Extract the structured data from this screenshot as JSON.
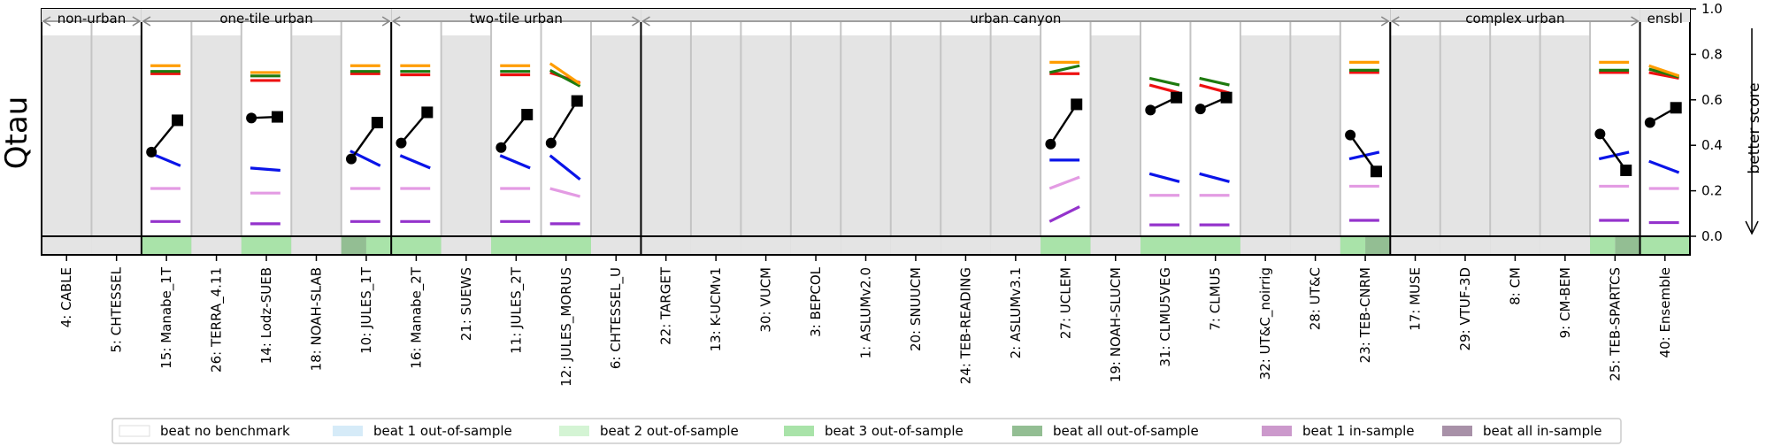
{
  "chart_data": {
    "type": "scatter",
    "ylabel": "Qtau",
    "right_label": "better score",
    "ylim": [
      0,
      1
    ],
    "y_ticks": [
      "0.0",
      "0.2",
      "0.4",
      "0.6",
      "0.8",
      "1.0"
    ],
    "groups": [
      {
        "name": "non-urban",
        "start": 0,
        "end": 2
      },
      {
        "name": "one-tile urban",
        "start": 2,
        "end": 7
      },
      {
        "name": "two-tile urban",
        "start": 7,
        "end": 12
      },
      {
        "name": "urban canyon",
        "start": 12,
        "end": 27
      },
      {
        "name": "complex urban",
        "start": 27,
        "end": 32
      },
      {
        "name": "ensbl",
        "start": 32,
        "end": 33
      }
    ],
    "models": [
      {
        "label": "4: CABLE",
        "highlight": false,
        "bench": "none"
      },
      {
        "label": "5: CHTESSEL",
        "highlight": false,
        "bench": "none"
      },
      {
        "label": "15: Manabe_1T",
        "highlight": true,
        "bench": "beat3",
        "lines": {
          "orange": 0.75,
          "green": 0.725,
          "red": 0.715,
          "blue": [
            0.365,
            0.31
          ],
          "pink": 0.21,
          "purple": 0.065
        },
        "circle": 0.37,
        "square": 0.51
      },
      {
        "label": "26: TERRA_4.11",
        "highlight": false,
        "bench": "none"
      },
      {
        "label": "14: Lodz-SUEB",
        "highlight": true,
        "bench": "beat3",
        "lines": {
          "orange": 0.72,
          "green": 0.705,
          "red": 0.685,
          "blue": [
            0.3,
            0.29
          ],
          "pink": 0.19,
          "purple": 0.055
        },
        "circle": 0.52,
        "square": 0.525
      },
      {
        "label": "18: NOAH-SLAB",
        "highlight": false,
        "bench": "none"
      },
      {
        "label": "10: JULES_1T",
        "highlight": true,
        "bench": "beatall",
        "lines": {
          "orange": 0.75,
          "green": 0.725,
          "red": 0.715,
          "blue": [
            0.375,
            0.31
          ],
          "pink": 0.21,
          "purple": 0.065
        },
        "circle": 0.34,
        "square": 0.5
      },
      {
        "label": "16: Manabe_2T",
        "highlight": true,
        "bench": "beat3",
        "lines": {
          "orange": 0.75,
          "green": 0.725,
          "red": 0.71,
          "blue": [
            0.355,
            0.3
          ],
          "pink": 0.21,
          "purple": 0.065
        },
        "circle": 0.41,
        "square": 0.545
      },
      {
        "label": "21: SUEWS",
        "highlight": false,
        "bench": "none"
      },
      {
        "label": "11: JULES_2T",
        "highlight": true,
        "bench": "beat3",
        "lines": {
          "orange": 0.75,
          "green": 0.725,
          "red": 0.71,
          "blue": [
            0.355,
            0.3
          ],
          "pink": 0.21,
          "purple": 0.065
        },
        "circle": 0.39,
        "square": 0.535
      },
      {
        "label": "12: JULES_MORUS",
        "highlight": true,
        "bench": "beat3",
        "lines": {
          "orange": [
            0.76,
            0.67
          ],
          "green": [
            0.73,
            0.66
          ],
          "red": [
            0.72,
            0.675
          ],
          "blue": [
            0.355,
            0.25
          ],
          "pink": [
            0.21,
            0.175
          ],
          "purple": 0.055
        },
        "circle": 0.41,
        "square": 0.595
      },
      {
        "label": "6: CHTESSEL_U",
        "highlight": false,
        "bench": "none"
      },
      {
        "label": "22: TARGET",
        "highlight": false,
        "bench": "none"
      },
      {
        "label": "13: K-UCMv1",
        "highlight": false,
        "bench": "none"
      },
      {
        "label": "30: VUCM",
        "highlight": false,
        "bench": "none"
      },
      {
        "label": "3: BEPCOL",
        "highlight": false,
        "bench": "none"
      },
      {
        "label": "1: ASLUMv2.0",
        "highlight": false,
        "bench": "none"
      },
      {
        "label": "20: SNUUCM",
        "highlight": false,
        "bench": "none"
      },
      {
        "label": "24: TEB-READING",
        "highlight": false,
        "bench": "none"
      },
      {
        "label": "2: ASLUMv3.1",
        "highlight": false,
        "bench": "none"
      },
      {
        "label": "27: UCLEM",
        "highlight": true,
        "bench": "beat3",
        "lines": {
          "orange": 0.765,
          "green": [
            0.72,
            0.75
          ],
          "red": 0.715,
          "blue": 0.335,
          "pink": [
            0.21,
            0.26
          ],
          "purple": [
            0.065,
            0.13
          ]
        },
        "circle": 0.405,
        "square": 0.58
      },
      {
        "label": "19: NOAH-SLUCM",
        "highlight": false,
        "bench": "none"
      },
      {
        "label": "31: CLMU5VEG",
        "highlight": true,
        "bench": "beat3",
        "lines": {
          "green": [
            0.695,
            0.665
          ],
          "red": [
            0.665,
            0.63
          ],
          "blue": [
            0.275,
            0.24
          ],
          "pink": 0.18,
          "purple": 0.05
        },
        "circle": 0.555,
        "square": 0.61
      },
      {
        "label": "7: CLMU5",
        "highlight": true,
        "bench": "beat3",
        "lines": {
          "green": [
            0.695,
            0.665
          ],
          "red": [
            0.665,
            0.63
          ],
          "blue": [
            0.275,
            0.24
          ],
          "pink": 0.18,
          "purple": 0.05
        },
        "circle": 0.56,
        "square": 0.61
      },
      {
        "label": "32: UT&C_noirrig",
        "highlight": false,
        "bench": "none"
      },
      {
        "label": "28: UT&C",
        "highlight": false,
        "bench": "none"
      },
      {
        "label": "23: TEB-CNRM",
        "highlight": true,
        "bench": "beat3_all",
        "lines": {
          "orange": 0.765,
          "green": 0.73,
          "red": 0.72,
          "blue": [
            0.34,
            0.37
          ],
          "pink": 0.22,
          "purple": 0.07
        },
        "circle": 0.445,
        "square": 0.285
      },
      {
        "label": "17: MUSE",
        "highlight": false,
        "bench": "none"
      },
      {
        "label": "29: VTUF-3D",
        "highlight": false,
        "bench": "none"
      },
      {
        "label": "8: CM",
        "highlight": false,
        "bench": "none"
      },
      {
        "label": "9: CM-BEM",
        "highlight": false,
        "bench": "none"
      },
      {
        "label": "25: TEB-SPARTCS",
        "highlight": true,
        "bench": "beat3_all",
        "lines": {
          "orange": 0.765,
          "green": 0.73,
          "red": 0.72,
          "blue": [
            0.34,
            0.37
          ],
          "pink": 0.22,
          "purple": 0.07
        },
        "circle": 0.45,
        "square": 0.29
      },
      {
        "label": "40: Ensemble",
        "highlight": true,
        "bench": "beat3",
        "lines": {
          "orange": [
            0.75,
            0.705
          ],
          "green": [
            0.735,
            0.7
          ],
          "red": [
            0.72,
            0.695
          ],
          "blue": [
            0.33,
            0.28
          ],
          "pink": 0.21,
          "purple": 0.06
        },
        "circle": 0.5,
        "square": 0.565
      }
    ],
    "legend": [
      {
        "label": "beat no benchmark",
        "color": "#ffffff"
      },
      {
        "label": "beat 1 out-of-sample",
        "color": "#d6ebf8"
      },
      {
        "label": "beat 2 out-of-sample",
        "color": "#d4f4d4"
      },
      {
        "label": "beat 3 out-of-sample",
        "color": "#a9e3a9"
      },
      {
        "label": "beat all out-of-sample",
        "color": "#93be93"
      },
      {
        "label": "beat 1 in-sample",
        "color": "#cc99cc"
      },
      {
        "label": "beat all in-sample",
        "color": "#a891a8"
      }
    ],
    "colors": {
      "orange": "#ff9d00",
      "green": "#1e7a0f",
      "red": "#ee1111",
      "blue": "#0a14e8",
      "pink": "#e39be3",
      "purple": "#9433cc",
      "grey_bg": "#e4e4e4",
      "separator": "#c4c4c4"
    }
  }
}
